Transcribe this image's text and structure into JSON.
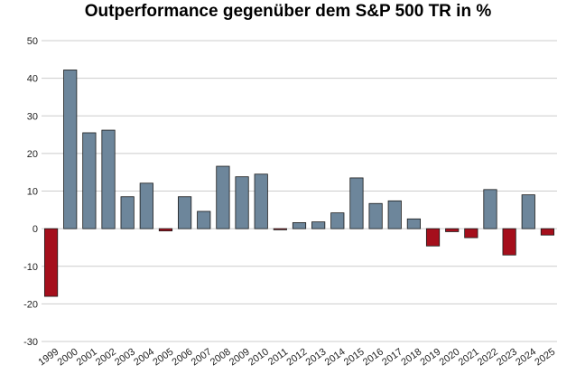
{
  "chart_data": {
    "type": "bar",
    "title": "Outperformance gegenüber dem S&P 500 TR in %",
    "xlabel": "",
    "ylabel": "",
    "ylim": [
      -30,
      50
    ],
    "yticks": [
      50,
      40,
      30,
      20,
      10,
      0,
      -10,
      -20,
      -30
    ],
    "grid": true,
    "legend": "none",
    "categories": [
      "1999",
      "2000",
      "2001",
      "2002",
      "2003",
      "2004",
      "2005",
      "2006",
      "2007",
      "2008",
      "2009",
      "2010",
      "2011",
      "2012",
      "2013",
      "2014",
      "2015",
      "2016",
      "2017",
      "2018",
      "2019",
      "2020",
      "2021",
      "2022",
      "2023",
      "2024",
      "2025"
    ],
    "values": [
      -18,
      42.2,
      25.5,
      26.2,
      8.5,
      12.1,
      -0.6,
      8.5,
      4.6,
      16.6,
      13.8,
      14.5,
      -0.3,
      1.6,
      1.8,
      4.2,
      13.5,
      6.7,
      7.4,
      2.6,
      -4.6,
      -0.8,
      -2.4,
      10.4,
      -7,
      9,
      -1.7
    ],
    "colors": {
      "positive": "#6d869b",
      "negative": "#a50f1c",
      "grid": "#cccccc",
      "outline": "#1a1a1a"
    }
  }
}
